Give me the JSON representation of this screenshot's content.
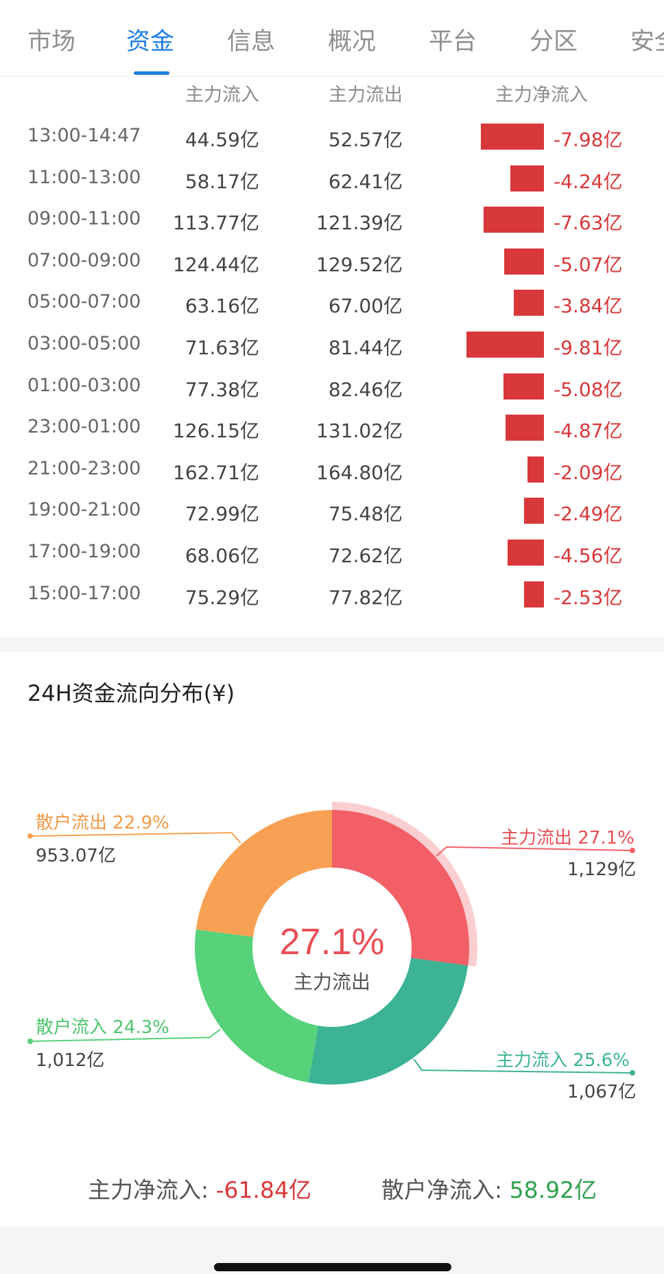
{
  "tabs": [
    {
      "label": "市场"
    },
    {
      "label": "资金"
    },
    {
      "label": "信息"
    },
    {
      "label": "概况"
    },
    {
      "label": "平台"
    },
    {
      "label": "分区"
    },
    {
      "label": "安全"
    }
  ],
  "active_tab_index": 1,
  "table": {
    "headers": {
      "inflow": "主力流入",
      "outflow": "主力流出",
      "net": "主力净流入"
    },
    "rows": [
      {
        "time": "13:00-14:47",
        "in": "44.59亿",
        "out": "52.57亿",
        "net": "-7.98亿",
        "net_value": -7.98
      },
      {
        "time": "11:00-13:00",
        "in": "58.17亿",
        "out": "62.41亿",
        "net": "-4.24亿",
        "net_value": -4.24
      },
      {
        "time": "09:00-11:00",
        "in": "113.77亿",
        "out": "121.39亿",
        "net": "-7.63亿",
        "net_value": -7.63
      },
      {
        "time": "07:00-09:00",
        "in": "124.44亿",
        "out": "129.52亿",
        "net": "-5.07亿",
        "net_value": -5.07
      },
      {
        "time": "05:00-07:00",
        "in": "63.16亿",
        "out": "67.00亿",
        "net": "-3.84亿",
        "net_value": -3.84
      },
      {
        "time": "03:00-05:00",
        "in": "71.63亿",
        "out": "81.44亿",
        "net": "-9.81亿",
        "net_value": -9.81
      },
      {
        "time": "01:00-03:00",
        "in": "77.38亿",
        "out": "82.46亿",
        "net": "-5.08亿",
        "net_value": -5.08
      },
      {
        "time": "23:00-01:00",
        "in": "126.15亿",
        "out": "131.02亿",
        "net": "-4.87亿",
        "net_value": -4.87
      },
      {
        "time": "21:00-23:00",
        "in": "162.71亿",
        "out": "164.80亿",
        "net": "-2.09亿",
        "net_value": -2.09
      },
      {
        "time": "19:00-21:00",
        "in": "72.99亿",
        "out": "75.48亿",
        "net": "-2.49亿",
        "net_value": -2.49
      },
      {
        "time": "17:00-19:00",
        "in": "68.06亿",
        "out": "72.62亿",
        "net": "-4.56亿",
        "net_value": -4.56
      },
      {
        "time": "15:00-17:00",
        "in": "75.29亿",
        "out": "77.82亿",
        "net": "-2.53亿",
        "net_value": -2.53
      }
    ],
    "bar_color": "#d8383a"
  },
  "distribution": {
    "title": "24H资金流向分布(¥)",
    "center_value": "27.1%",
    "center_label": "主力流出",
    "highlight_color": "#e94f57"
  },
  "chart_data": {
    "type": "pie",
    "donut": true,
    "slices": [
      {
        "label": "主力流出",
        "percent_text": "27.1%",
        "percent": 27.1,
        "amount": "1,129亿",
        "color": "#f25f66"
      },
      {
        "label": "主力流入",
        "percent_text": "25.6%",
        "percent": 25.6,
        "amount": "1,067亿",
        "color": "#3db396"
      },
      {
        "label": "散户流入",
        "percent_text": "24.3%",
        "percent": 24.3,
        "amount": "1,012亿",
        "color": "#57d17a"
      },
      {
        "label": "散户流出",
        "percent_text": "22.9%",
        "percent": 22.9,
        "amount": "953.07亿",
        "color": "#f8a154"
      }
    ],
    "highlighted_slice": "主力流出"
  },
  "summary": {
    "main_label": "主力净流入:",
    "main_value": "-61.84亿",
    "retail_label": "散户净流入:",
    "retail_value": "58.92亿"
  }
}
